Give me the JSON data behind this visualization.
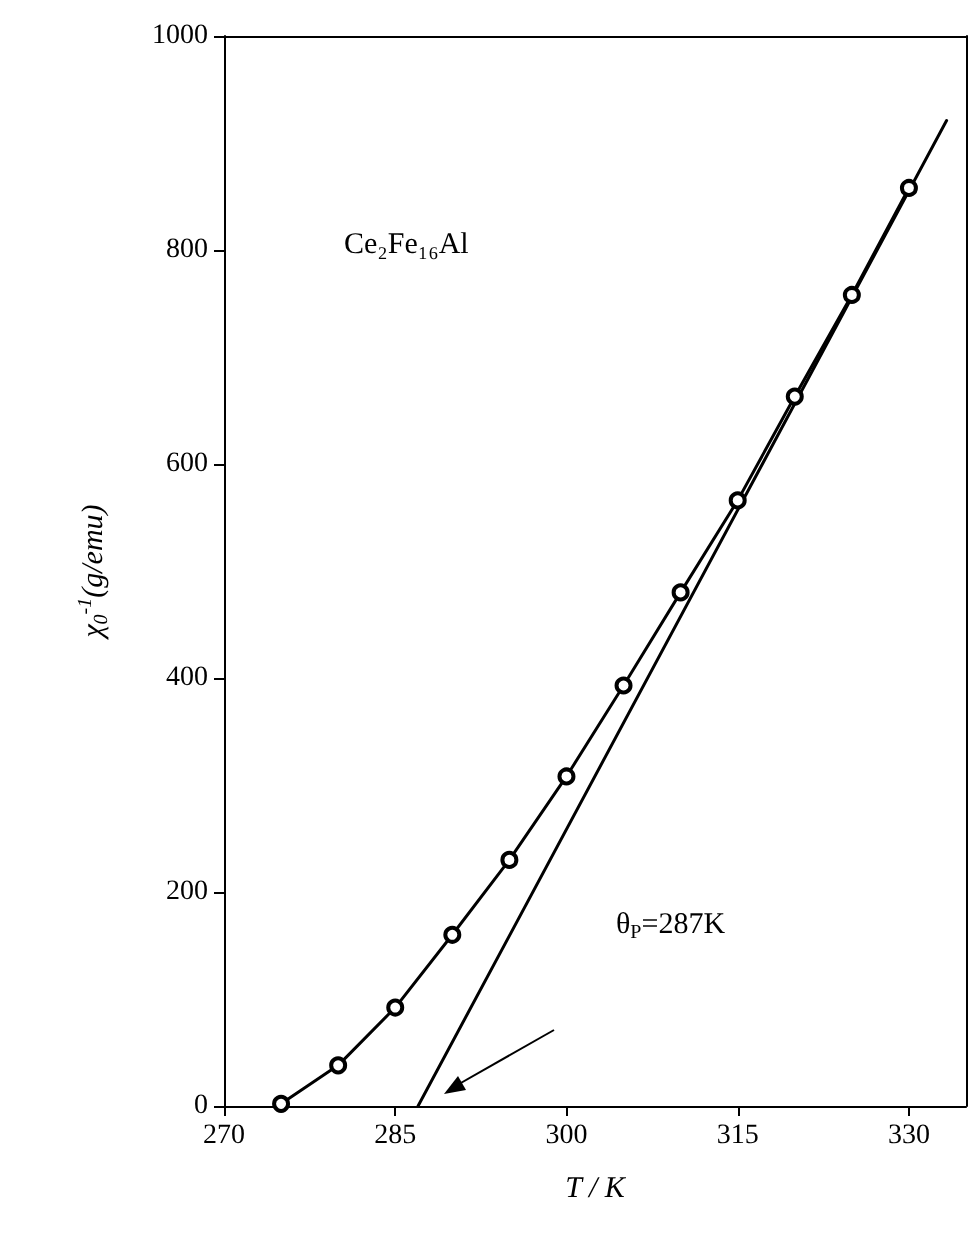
{
  "chart_data": {
    "type": "line",
    "xlabel": "T / K",
    "ylabel": "χ$_{0}$$^{-1}$(g/emu)",
    "annotations": [
      "Ce₂Fe₁₆Al",
      "θ$_{P}$=287K"
    ],
    "series": [
      {
        "color": "#000000",
        "marker": "circle",
        "x": [
          275,
          280,
          285,
          290,
          295,
          300,
          305,
          310,
          315,
          320,
          325,
          330
        ],
        "values": [
          2,
          38,
          92,
          160,
          230,
          308,
          393,
          480,
          566,
          663,
          758,
          858
        ]
      },
      {
        "color": "#000000",
        "marker": "none",
        "x": [
          287,
          333.3
        ],
        "values": [
          0,
          921
        ]
      }
    ],
    "xlim": [
      270,
      335
    ],
    "xticks": [
      270,
      285,
      300,
      315,
      330
    ],
    "ylim": [
      0,
      1000
    ],
    "yticks": [
      0,
      200,
      400,
      600,
      800,
      1000
    ],
    "grid": false,
    "line_style": "solid"
  }
}
